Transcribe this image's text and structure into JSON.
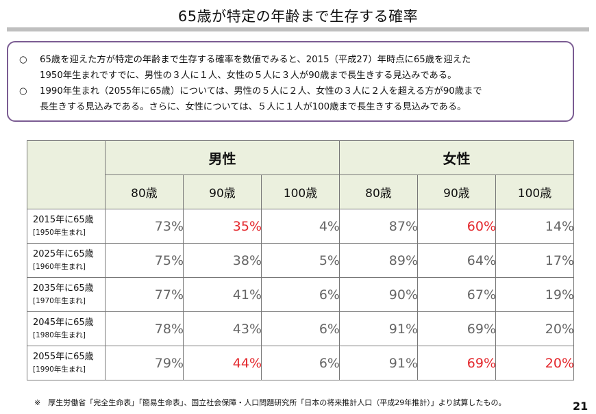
{
  "title": "65歳が特定の年齢まで生存する確率",
  "summary": {
    "bullets": [
      {
        "mark": "○",
        "text": "65歳を迎えた方が特定の年齢まで生存する確率を数値でみると、2015（平成27）年時点に65歳を迎えた\n1950年生まれですでに、男性の３人に１人、女性の５人に３人が90歳まで長生きする見込みである。"
      },
      {
        "mark": "○",
        "text": "1990年生まれ（2055年に65歳）については、男性の５人に２人、女性の３人に２人を超える方が90歳まで\n長生きする見込みである。さらに、女性については、５人に１人が100歳まで長生きする見込みである。"
      }
    ]
  },
  "table": {
    "groups": [
      "男性",
      "女性"
    ],
    "ages": [
      "80歳",
      "90歳",
      "100歳",
      "80歳",
      "90歳",
      "100歳"
    ],
    "rows": [
      {
        "label": "2015年に65歳",
        "sub": "[1950年生まれ]",
        "values": [
          "73%",
          "35%",
          "4%",
          "87%",
          "60%",
          "14%"
        ]
      },
      {
        "label": "2025年に65歳",
        "sub": "[1960年生まれ]",
        "values": [
          "75%",
          "38%",
          "5%",
          "89%",
          "64%",
          "17%"
        ]
      },
      {
        "label": "2035年に65歳",
        "sub": "[1970年生まれ]",
        "values": [
          "77%",
          "41%",
          "6%",
          "90%",
          "67%",
          "19%"
        ]
      },
      {
        "label": "2045年に65歳",
        "sub": "[1980年生まれ]",
        "values": [
          "78%",
          "43%",
          "6%",
          "91%",
          "69%",
          "20%"
        ]
      },
      {
        "label": "2055年に65歳",
        "sub": "[1990年生まれ]",
        "values": [
          "79%",
          "44%",
          "6%",
          "91%",
          "69%",
          "20%"
        ]
      }
    ],
    "highlight_color": "#e3262b",
    "header_bg": "#ebf0de"
  },
  "footnote": "※　厚生労働省「完全生命表」「簡易生命表」、国立社会保障・人口問題研究所「日本の将来推計人口（平成29年推計）」より試算したもの。",
  "page_number": "21"
}
